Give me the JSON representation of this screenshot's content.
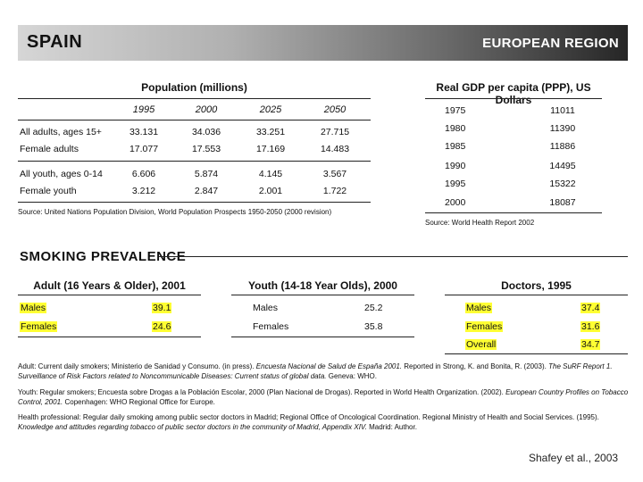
{
  "banner": {
    "country": "SPAIN",
    "region": "EUROPEAN REGION"
  },
  "population": {
    "title": "Population (millions)",
    "years": [
      "1995",
      "2000",
      "2025",
      "2050"
    ],
    "rows": [
      {
        "label": "All adults, ages 15+",
        "values": [
          "33.131",
          "34.036",
          "33.251",
          "27.715"
        ]
      },
      {
        "label": "Female adults",
        "values": [
          "17.077",
          "17.553",
          "17.169",
          "14.483"
        ]
      },
      {
        "label": "All youth, ages 0-14",
        "values": [
          "6.606",
          "5.874",
          "4.145",
          "3.567"
        ]
      },
      {
        "label": "Female youth",
        "values": [
          "3.212",
          "2.847",
          "2.001",
          "1.722"
        ]
      }
    ],
    "source": "Source: United Nations Population Division, World Population Prospects 1950-2050 (2000 revision)"
  },
  "gdp": {
    "title": "Real GDP per capita (PPP), US Dollars",
    "rows": [
      {
        "year": "1975",
        "value": "11011"
      },
      {
        "year": "1980",
        "value": "11390"
      },
      {
        "year": "1985",
        "value": "11886"
      },
      {
        "year": "1990",
        "value": "14495"
      },
      {
        "year": "1995",
        "value": "15322"
      },
      {
        "year": "2000",
        "value": "18087"
      }
    ],
    "source": "Source: World Health Report 2002"
  },
  "smoking": {
    "title": "SMOKING PREVALENCE",
    "adult": {
      "title": "Adult (16 Years & Older), 2001",
      "rows": [
        {
          "label": "Males",
          "value": "39.1"
        },
        {
          "label": "Females",
          "value": "24.6"
        }
      ]
    },
    "youth": {
      "title": "Youth (14-18 Year Olds), 2000",
      "rows": [
        {
          "label": "Males",
          "value": "25.2"
        },
        {
          "label": "Females",
          "value": "35.8"
        }
      ]
    },
    "doctors": {
      "title": "Doctors, 1995",
      "rows": [
        {
          "label": "Males",
          "value": "37.4"
        },
        {
          "label": "Females",
          "value": "31.6"
        },
        {
          "label": "Overall",
          "value": "34.7"
        }
      ]
    }
  },
  "notes": {
    "adult_a": "Adult: Current daily smokers; Ministerio de Sanidad y Consumo. (in press). ",
    "adult_b": "Encuesta Nacional de Salud de España 2001.",
    "adult_c": " Reported in Strong, K. and Bonita, R. (2003). ",
    "adult_d": "The SuRF Report 1. Surveillance of Risk Factors related to Noncommunicable Diseases: Current status of global data.",
    "adult_e": " Geneva: WHO.",
    "youth_a": "Youth: Regular smokers; Encuesta sobre Drogas a la Población Escolar, 2000 (Plan Nacional de Drogas). Reported in World Health Organization. (2002). ",
    "youth_b": "European Country Profiles on Tobacco Control, 2001.",
    "youth_c": " Copenhagen: WHO Regional Office for Europe.",
    "health_a": "Health professional: Regular daily smoking among public sector doctors in Madrid; Regional Office of Oncological Coordination. Regional Ministry of Health and Social Services. (1995). ",
    "health_b": "Knowledge and attitudes regarding tobacco of public sector doctors in the community of Madrid, Appendix XIV.",
    "health_c": " Madrid: Author."
  },
  "credit": "Shafey et al., 2003"
}
